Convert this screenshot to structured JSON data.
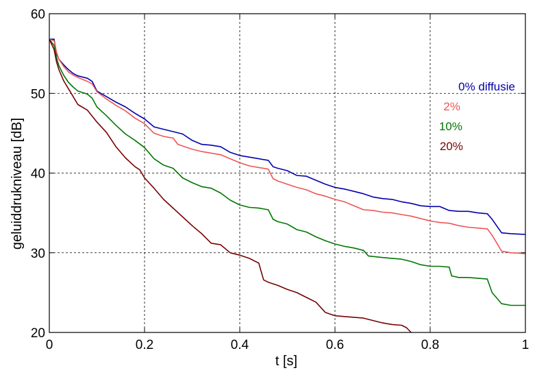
{
  "chart_data": {
    "type": "line",
    "xlabel": "t  [s]",
    "ylabel": "geluiddrukniveau  [dB]",
    "xlim": [
      0,
      1
    ],
    "ylim": [
      20,
      60
    ],
    "xticks": [
      0,
      0.2,
      0.4,
      0.6,
      0.8,
      1
    ],
    "xtick_labels": [
      "0",
      "0.2",
      "0.4",
      "0.6",
      "0.8",
      "1"
    ],
    "yticks": [
      20,
      30,
      40,
      50,
      60
    ],
    "ytick_labels": [
      "20",
      "30",
      "40",
      "50",
      "60"
    ],
    "grid": true,
    "legend_placement": "right",
    "series": [
      {
        "name": "0%  diffusie",
        "color": "#0000aa",
        "points": [
          [
            0,
            56.8
          ],
          [
            0.01,
            56.8
          ],
          [
            0.015,
            55.0
          ],
          [
            0.02,
            54.3
          ],
          [
            0.03,
            53.6
          ],
          [
            0.04,
            53.0
          ],
          [
            0.05,
            52.5
          ],
          [
            0.06,
            52.2
          ],
          [
            0.08,
            51.9
          ],
          [
            0.09,
            51.5
          ],
          [
            0.1,
            50.3
          ],
          [
            0.12,
            49.6
          ],
          [
            0.14,
            48.9
          ],
          [
            0.16,
            48.3
          ],
          [
            0.18,
            47.5
          ],
          [
            0.2,
            46.8
          ],
          [
            0.22,
            45.8
          ],
          [
            0.24,
            45.5
          ],
          [
            0.26,
            45.2
          ],
          [
            0.28,
            44.9
          ],
          [
            0.3,
            44.1
          ],
          [
            0.32,
            43.6
          ],
          [
            0.34,
            43.5
          ],
          [
            0.36,
            43.3
          ],
          [
            0.38,
            42.6
          ],
          [
            0.4,
            42.2
          ],
          [
            0.42,
            42.0
          ],
          [
            0.44,
            41.8
          ],
          [
            0.46,
            41.6
          ],
          [
            0.47,
            40.8
          ],
          [
            0.48,
            40.6
          ],
          [
            0.5,
            40.3
          ],
          [
            0.52,
            39.7
          ],
          [
            0.54,
            39.6
          ],
          [
            0.56,
            39.1
          ],
          [
            0.58,
            38.6
          ],
          [
            0.6,
            38.2
          ],
          [
            0.62,
            38.0
          ],
          [
            0.64,
            37.7
          ],
          [
            0.66,
            37.4
          ],
          [
            0.68,
            37.0
          ],
          [
            0.7,
            36.8
          ],
          [
            0.72,
            36.7
          ],
          [
            0.74,
            36.4
          ],
          [
            0.76,
            36.2
          ],
          [
            0.78,
            35.9
          ],
          [
            0.8,
            35.8
          ],
          [
            0.82,
            35.8
          ],
          [
            0.84,
            35.3
          ],
          [
            0.86,
            35.2
          ],
          [
            0.88,
            35.2
          ],
          [
            0.9,
            35.0
          ],
          [
            0.92,
            34.9
          ],
          [
            0.93,
            34.2
          ],
          [
            0.95,
            32.5
          ],
          [
            0.97,
            32.4
          ],
          [
            1.0,
            32.3
          ]
        ]
      },
      {
        "name": "2%",
        "color": "#ee5555",
        "points": [
          [
            0,
            56.8
          ],
          [
            0.01,
            56.6
          ],
          [
            0.015,
            55.2
          ],
          [
            0.02,
            54.3
          ],
          [
            0.03,
            53.4
          ],
          [
            0.04,
            52.7
          ],
          [
            0.05,
            52.3
          ],
          [
            0.06,
            52.0
          ],
          [
            0.08,
            51.5
          ],
          [
            0.09,
            51.2
          ],
          [
            0.1,
            50.2
          ],
          [
            0.12,
            49.3
          ],
          [
            0.14,
            48.5
          ],
          [
            0.16,
            47.8
          ],
          [
            0.18,
            46.9
          ],
          [
            0.2,
            46.2
          ],
          [
            0.22,
            45.0
          ],
          [
            0.24,
            44.6
          ],
          [
            0.26,
            44.4
          ],
          [
            0.27,
            43.6
          ],
          [
            0.28,
            43.4
          ],
          [
            0.3,
            43.0
          ],
          [
            0.32,
            42.7
          ],
          [
            0.34,
            42.5
          ],
          [
            0.36,
            42.3
          ],
          [
            0.38,
            41.8
          ],
          [
            0.4,
            41.3
          ],
          [
            0.42,
            40.9
          ],
          [
            0.44,
            40.7
          ],
          [
            0.46,
            40.5
          ],
          [
            0.47,
            39.3
          ],
          [
            0.48,
            39.0
          ],
          [
            0.5,
            38.6
          ],
          [
            0.52,
            38.2
          ],
          [
            0.54,
            37.9
          ],
          [
            0.56,
            37.4
          ],
          [
            0.58,
            37.1
          ],
          [
            0.6,
            36.7
          ],
          [
            0.62,
            36.4
          ],
          [
            0.64,
            35.9
          ],
          [
            0.66,
            35.4
          ],
          [
            0.68,
            35.3
          ],
          [
            0.7,
            35.1
          ],
          [
            0.72,
            35.0
          ],
          [
            0.74,
            34.8
          ],
          [
            0.76,
            34.6
          ],
          [
            0.78,
            34.3
          ],
          [
            0.8,
            34.0
          ],
          [
            0.82,
            33.8
          ],
          [
            0.84,
            33.7
          ],
          [
            0.86,
            33.4
          ],
          [
            0.88,
            33.2
          ],
          [
            0.9,
            33.1
          ],
          [
            0.92,
            33.0
          ],
          [
            0.93,
            32.2
          ],
          [
            0.95,
            30.2
          ],
          [
            0.97,
            30.0
          ],
          [
            1.0,
            29.9
          ]
        ]
      },
      {
        "name": "10%",
        "color": "#007700",
        "points": [
          [
            0,
            56.8
          ],
          [
            0.01,
            56.0
          ],
          [
            0.015,
            54.5
          ],
          [
            0.02,
            53.5
          ],
          [
            0.03,
            52.3
          ],
          [
            0.04,
            51.4
          ],
          [
            0.05,
            50.8
          ],
          [
            0.06,
            50.3
          ],
          [
            0.08,
            49.9
          ],
          [
            0.09,
            49.4
          ],
          [
            0.1,
            48.3
          ],
          [
            0.12,
            47.2
          ],
          [
            0.14,
            46.0
          ],
          [
            0.16,
            44.9
          ],
          [
            0.18,
            44.1
          ],
          [
            0.2,
            43.2
          ],
          [
            0.22,
            41.8
          ],
          [
            0.24,
            41.0
          ],
          [
            0.26,
            40.6
          ],
          [
            0.28,
            39.4
          ],
          [
            0.3,
            38.8
          ],
          [
            0.32,
            38.3
          ],
          [
            0.34,
            38.1
          ],
          [
            0.36,
            37.5
          ],
          [
            0.38,
            36.6
          ],
          [
            0.4,
            36.0
          ],
          [
            0.42,
            35.7
          ],
          [
            0.44,
            35.6
          ],
          [
            0.46,
            35.4
          ],
          [
            0.47,
            34.2
          ],
          [
            0.48,
            33.9
          ],
          [
            0.5,
            33.6
          ],
          [
            0.52,
            32.9
          ],
          [
            0.54,
            32.6
          ],
          [
            0.56,
            32.0
          ],
          [
            0.58,
            31.5
          ],
          [
            0.6,
            31.1
          ],
          [
            0.62,
            30.8
          ],
          [
            0.64,
            30.6
          ],
          [
            0.66,
            30.3
          ],
          [
            0.67,
            29.6
          ],
          [
            0.7,
            29.4
          ],
          [
            0.72,
            29.3
          ],
          [
            0.74,
            29.2
          ],
          [
            0.76,
            28.9
          ],
          [
            0.78,
            28.5
          ],
          [
            0.8,
            28.3
          ],
          [
            0.82,
            28.3
          ],
          [
            0.84,
            28.2
          ],
          [
            0.845,
            27.1
          ],
          [
            0.86,
            26.9
          ],
          [
            0.88,
            26.9
          ],
          [
            0.9,
            26.8
          ],
          [
            0.92,
            26.7
          ],
          [
            0.93,
            25.0
          ],
          [
            0.95,
            23.6
          ],
          [
            0.97,
            23.4
          ],
          [
            1.0,
            23.4
          ]
        ]
      },
      {
        "name": "20%",
        "color": "#770000",
        "points": [
          [
            0,
            56.8
          ],
          [
            0.01,
            55.5
          ],
          [
            0.015,
            54.0
          ],
          [
            0.02,
            53.0
          ],
          [
            0.03,
            51.6
          ],
          [
            0.04,
            50.6
          ],
          [
            0.05,
            49.6
          ],
          [
            0.06,
            48.6
          ],
          [
            0.08,
            47.9
          ],
          [
            0.1,
            46.4
          ],
          [
            0.12,
            45.1
          ],
          [
            0.14,
            43.3
          ],
          [
            0.16,
            41.9
          ],
          [
            0.18,
            40.8
          ],
          [
            0.19,
            40.4
          ],
          [
            0.2,
            39.4
          ],
          [
            0.22,
            38.1
          ],
          [
            0.24,
            36.7
          ],
          [
            0.26,
            35.6
          ],
          [
            0.28,
            34.5
          ],
          [
            0.3,
            33.4
          ],
          [
            0.32,
            32.4
          ],
          [
            0.34,
            31.2
          ],
          [
            0.36,
            31.0
          ],
          [
            0.38,
            30.0
          ],
          [
            0.4,
            29.7
          ],
          [
            0.42,
            29.3
          ],
          [
            0.44,
            28.7
          ],
          [
            0.45,
            26.6
          ],
          [
            0.46,
            26.3
          ],
          [
            0.48,
            25.9
          ],
          [
            0.5,
            25.4
          ],
          [
            0.52,
            25.0
          ],
          [
            0.54,
            24.4
          ],
          [
            0.56,
            23.8
          ],
          [
            0.58,
            22.5
          ],
          [
            0.6,
            22.1
          ],
          [
            0.62,
            22.0
          ],
          [
            0.64,
            21.9
          ],
          [
            0.66,
            21.8
          ],
          [
            0.68,
            21.5
          ],
          [
            0.7,
            21.2
          ],
          [
            0.72,
            21.0
          ],
          [
            0.74,
            20.9
          ],
          [
            0.75,
            20.6
          ],
          [
            0.76,
            20.0
          ]
        ]
      }
    ]
  }
}
